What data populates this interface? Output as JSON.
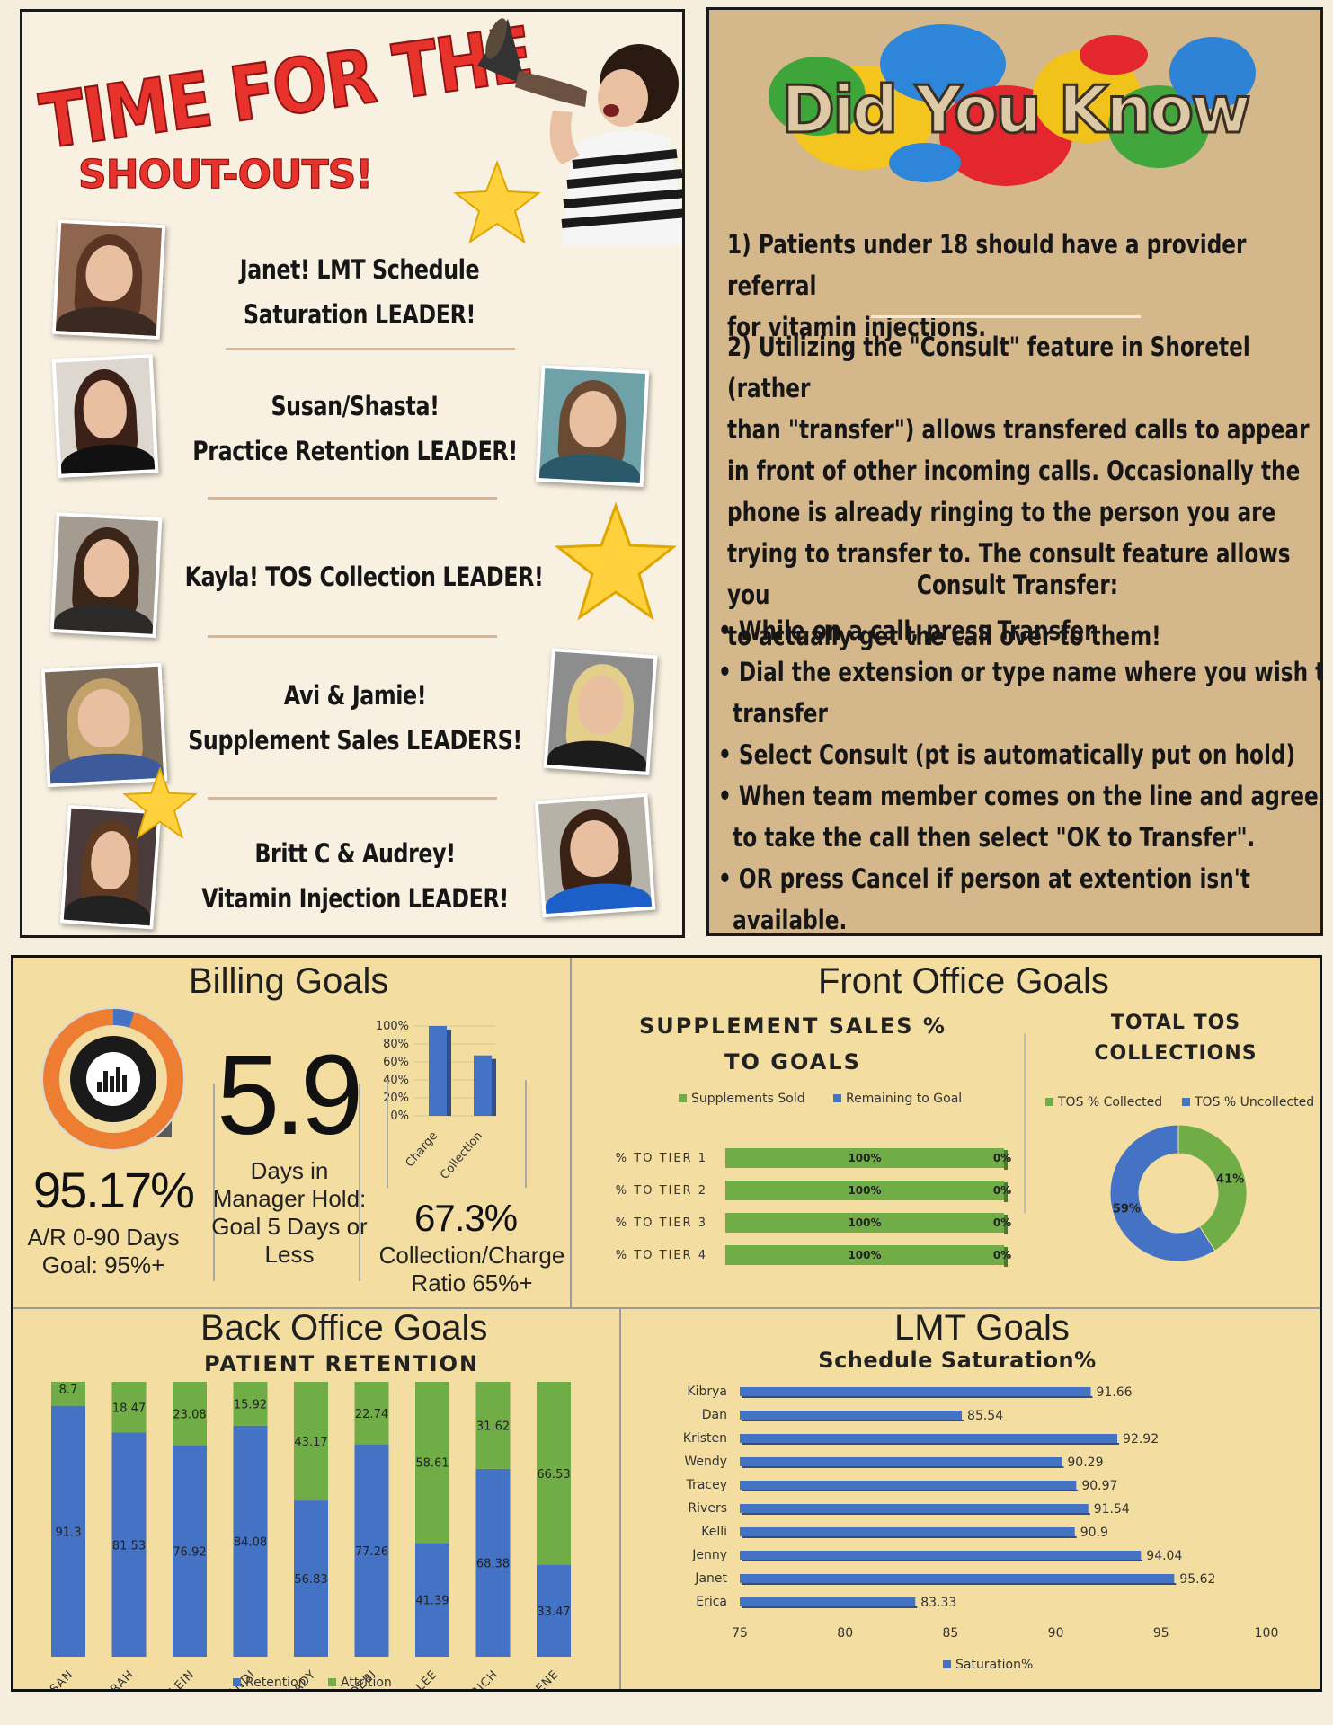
{
  "shoutouts": {
    "title_top": "TIME FOR THE",
    "title_bottom": "SHOUT-OUTS!",
    "leaders": [
      {
        "line1": "Janet!  LMT Schedule",
        "line2": "Saturation LEADER!"
      },
      {
        "line1": "Susan/Shasta!",
        "line2": "Practice Retention LEADER!"
      },
      {
        "line1": "Kayla! TOS Collection LEADER!",
        "line2": ""
      },
      {
        "line1": "Avi & Jamie!",
        "line2": "Supplement Sales  LEADERS!"
      },
      {
        "line1": "Britt C & Audrey!",
        "line2": "Vitamin Injection LEADER!"
      }
    ]
  },
  "did_you_know": {
    "title": "Did You Know",
    "fact1": [
      "1) Patients under 18 should have a provider referral",
      "for vitamin injections."
    ],
    "fact2": [
      "2) Utilizing the \"Consult\" feature in Shoretel (rather",
      "than \"transfer\") allows transfered calls to appear",
      "in front of other incoming calls.  Occasionally the",
      "phone is already ringing to the person you are",
      "trying to transfer to. The consult feature allows you",
      "to actually get the call over to them!"
    ],
    "consult_heading": "Consult Transfer:",
    "bullets": [
      [
        "• While on a call, press Transfer"
      ],
      [
        "• Dial the extension or type name where you wish to",
        "  transfer"
      ],
      [
        "• Select Consult (pt is automatically put on hold)"
      ],
      [
        "• When team member comes on the line and agrees",
        "  to take the call then select \"OK to Transfer\"."
      ],
      [
        "• OR press Cancel if person at extention isn't",
        "  available."
      ]
    ]
  },
  "billing": {
    "title": "Billing Goals",
    "ar_value": "95.17%",
    "ar_caption": [
      "A/R 0-90 Days",
      "Goal: 95%+"
    ],
    "ar_fill": 0.9517,
    "days_value": "5.9",
    "days_caption": [
      "Days in",
      "Manager Hold:",
      "Goal 5 Days or",
      "Less"
    ],
    "ratio_value": "67.3%",
    "ratio_caption": [
      "Collection/Charge",
      "Ratio 65%+"
    ],
    "mini_chart": {
      "type": "bar",
      "categories": [
        "Charge",
        "Collection"
      ],
      "values": [
        100,
        67.3
      ],
      "yticks": [
        "100%",
        "80%",
        "60%",
        "40%",
        "20%",
        "0%"
      ]
    }
  },
  "front_office": {
    "title": "Front Office Goals",
    "supp_title": [
      "SUPPLEMENT SALES %",
      "TO GOALS"
    ],
    "supp_legend": [
      "Supplements Sold",
      "Remaining to Goal"
    ],
    "tos_title": [
      "TOTAL TOS",
      "COLLECTIONS"
    ],
    "tos_legend": [
      "TOS % Collected",
      "TOS % Uncollected"
    ]
  },
  "back_office": {
    "title": "Back Office Goals",
    "subtitle": "PATIENT RETENTION",
    "legend": [
      "Retention",
      "Attrition"
    ]
  },
  "lmt": {
    "title": "LMT Goals",
    "subtitle": "Schedule Saturation%",
    "legend": "Saturation%"
  },
  "colors": {
    "blue": "#4472c4",
    "green": "#70ad47",
    "orange": "#ed7d31"
  },
  "chart_data": [
    {
      "type": "bar",
      "orientation": "horizontal-stacked",
      "title": "SUPPLEMENT SALES % TO GOALS",
      "categories": [
        "% TO TIER 1",
        "% TO TIER 2",
        "% TO TIER 3",
        "% TO TIER 4"
      ],
      "series": [
        {
          "name": "Supplements Sold",
          "values": [
            100,
            100,
            100,
            100
          ],
          "labels": [
            "100%",
            "100%",
            "100%",
            "100%"
          ]
        },
        {
          "name": "Remaining to Goal",
          "values": [
            0,
            0,
            0,
            0
          ],
          "labels": [
            "0%",
            "0%",
            "0%",
            "0%"
          ]
        }
      ],
      "legend": "top"
    },
    {
      "type": "pie",
      "variant": "donut",
      "title": "TOTAL TOS COLLECTIONS",
      "categories": [
        "TOS % Collected",
        "TOS % Uncollected"
      ],
      "values": [
        41,
        59
      ],
      "labels": [
        "41%",
        "59%"
      ],
      "legend": "top"
    },
    {
      "type": "bar",
      "orientation": "vertical-stacked",
      "title": "PATIENT RETENTION",
      "categories": [
        "SUSAN",
        "SARAH",
        "KLEIN",
        "ANDI",
        "BRADY",
        "DEBI",
        "LEE",
        "GOODRICH",
        "TORNABENE"
      ],
      "series": [
        {
          "name": "Retention",
          "values": [
            91.3,
            81.53,
            76.92,
            84.08,
            56.83,
            77.26,
            41.39,
            68.38,
            33.47
          ],
          "labels": [
            "91.3",
            "81.53",
            "76.92",
            "84.08",
            "56.83",
            "77.26",
            "41.39",
            "68.38",
            "33.47"
          ]
        },
        {
          "name": "Attrition",
          "values": [
            8.7,
            18.47,
            23.08,
            15.92,
            43.17,
            22.74,
            58.61,
            31.62,
            66.53
          ],
          "labels": [
            "8.7",
            "18.47",
            "23.08",
            "15.92",
            "43.17",
            "22.74",
            "58.61",
            "31.62",
            "66.53"
          ]
        }
      ],
      "legend": "bottom"
    },
    {
      "type": "bar",
      "orientation": "horizontal",
      "title": "Schedule Saturation%",
      "categories": [
        "Kibrya",
        "Dan",
        "Kristen",
        "Wendy",
        "Tracey",
        "Rivers",
        "Kelli",
        "Jenny",
        "Janet",
        "Erica"
      ],
      "series": [
        {
          "name": "Saturation%",
          "values": [
            91.66,
            85.54,
            92.92,
            90.29,
            90.97,
            91.54,
            90.9,
            94.04,
            95.62,
            83.33
          ],
          "labels": [
            "91.66",
            "85.54",
            "92.92",
            "90.29",
            "90.97",
            "91.54",
            "90.9",
            "94.04",
            "95.62",
            "83.33"
          ]
        }
      ],
      "xlim": [
        75,
        100
      ],
      "xticks": [
        "75",
        "80",
        "85",
        "90",
        "95",
        "100"
      ],
      "legend": "bottom"
    }
  ]
}
